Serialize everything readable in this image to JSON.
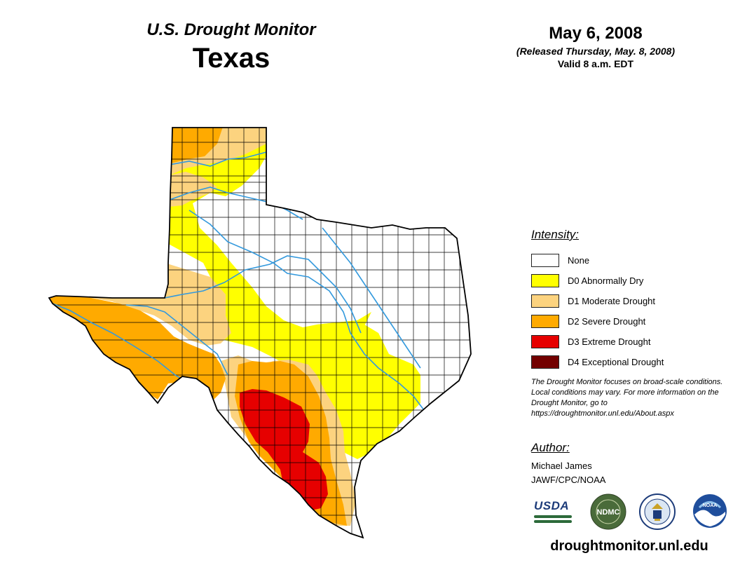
{
  "header": {
    "title": "U.S. Drought Monitor",
    "state": "Texas",
    "date": "May 6, 2008",
    "released": "(Released Thursday, May. 8, 2008)",
    "valid": "Valid 8 a.m. EDT"
  },
  "map": {
    "region": "Texas",
    "colors": {
      "none": "#ffffff",
      "d0": "#ffff00",
      "d1": "#fcd37f",
      "d2": "#ffaa00",
      "d3": "#e60000",
      "d4": "#730000",
      "river": "#3399dd",
      "county_line": "#000000"
    }
  },
  "legend": {
    "title": "Intensity:",
    "items": [
      {
        "label": "None",
        "color": "#ffffff"
      },
      {
        "label": "D0 Abnormally Dry",
        "color": "#ffff00"
      },
      {
        "label": "D1 Moderate Drought",
        "color": "#fcd37f"
      },
      {
        "label": "D2 Severe Drought",
        "color": "#ffaa00"
      },
      {
        "label": "D3 Extreme Drought",
        "color": "#e60000"
      },
      {
        "label": "D4 Exceptional Drought",
        "color": "#730000"
      }
    ]
  },
  "note": "The Drought Monitor focuses on broad-scale conditions. Local conditions may vary. For more information on the Drought Monitor, go to https://droughtmonitor.unl.edu/About.aspx",
  "author": {
    "title": "Author:",
    "name": "Michael James",
    "org": "JAWF/CPC/NOAA"
  },
  "logos": {
    "usda": "USDA",
    "ndmc": "NDMC",
    "noaa": "NOAA"
  },
  "site": "droughtmonitor.unl.edu"
}
